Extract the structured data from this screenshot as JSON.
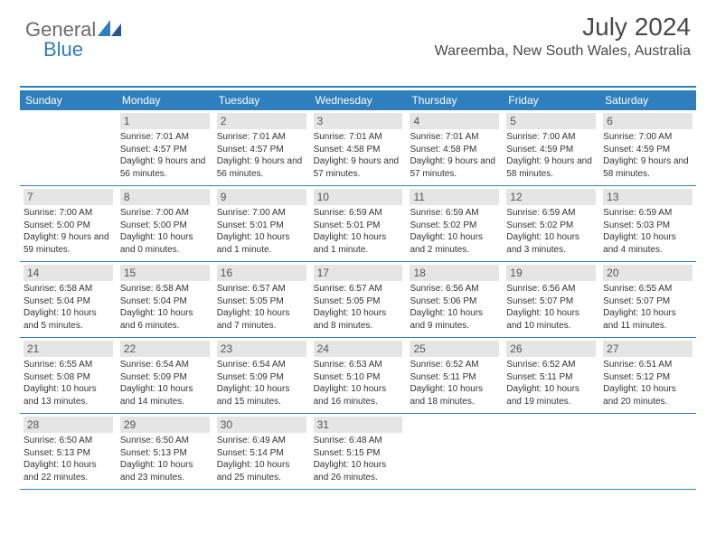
{
  "logo": {
    "word1": "General",
    "word2": "Blue"
  },
  "header": {
    "title": "July 2024",
    "location": "Wareemba, New South Wales, Australia"
  },
  "colors": {
    "accent": "#2f7fbf",
    "header_bg": "#2f7fbf",
    "daynum_bg": "#e5e5e5",
    "text": "#333333",
    "logo_gray": "#6b6b6b"
  },
  "calendar": {
    "day_names": [
      "Sunday",
      "Monday",
      "Tuesday",
      "Wednesday",
      "Thursday",
      "Friday",
      "Saturday"
    ],
    "first_weekday_index": 1,
    "days": [
      {
        "n": 1,
        "sunrise": "7:01 AM",
        "sunset": "4:57 PM",
        "daylight": "9 hours and 56 minutes."
      },
      {
        "n": 2,
        "sunrise": "7:01 AM",
        "sunset": "4:57 PM",
        "daylight": "9 hours and 56 minutes."
      },
      {
        "n": 3,
        "sunrise": "7:01 AM",
        "sunset": "4:58 PM",
        "daylight": "9 hours and 57 minutes."
      },
      {
        "n": 4,
        "sunrise": "7:01 AM",
        "sunset": "4:58 PM",
        "daylight": "9 hours and 57 minutes."
      },
      {
        "n": 5,
        "sunrise": "7:00 AM",
        "sunset": "4:59 PM",
        "daylight": "9 hours and 58 minutes."
      },
      {
        "n": 6,
        "sunrise": "7:00 AM",
        "sunset": "4:59 PM",
        "daylight": "9 hours and 58 minutes."
      },
      {
        "n": 7,
        "sunrise": "7:00 AM",
        "sunset": "5:00 PM",
        "daylight": "9 hours and 59 minutes."
      },
      {
        "n": 8,
        "sunrise": "7:00 AM",
        "sunset": "5:00 PM",
        "daylight": "10 hours and 0 minutes."
      },
      {
        "n": 9,
        "sunrise": "7:00 AM",
        "sunset": "5:01 PM",
        "daylight": "10 hours and 1 minute."
      },
      {
        "n": 10,
        "sunrise": "6:59 AM",
        "sunset": "5:01 PM",
        "daylight": "10 hours and 1 minute."
      },
      {
        "n": 11,
        "sunrise": "6:59 AM",
        "sunset": "5:02 PM",
        "daylight": "10 hours and 2 minutes."
      },
      {
        "n": 12,
        "sunrise": "6:59 AM",
        "sunset": "5:02 PM",
        "daylight": "10 hours and 3 minutes."
      },
      {
        "n": 13,
        "sunrise": "6:59 AM",
        "sunset": "5:03 PM",
        "daylight": "10 hours and 4 minutes."
      },
      {
        "n": 14,
        "sunrise": "6:58 AM",
        "sunset": "5:04 PM",
        "daylight": "10 hours and 5 minutes."
      },
      {
        "n": 15,
        "sunrise": "6:58 AM",
        "sunset": "5:04 PM",
        "daylight": "10 hours and 6 minutes."
      },
      {
        "n": 16,
        "sunrise": "6:57 AM",
        "sunset": "5:05 PM",
        "daylight": "10 hours and 7 minutes."
      },
      {
        "n": 17,
        "sunrise": "6:57 AM",
        "sunset": "5:05 PM",
        "daylight": "10 hours and 8 minutes."
      },
      {
        "n": 18,
        "sunrise": "6:56 AM",
        "sunset": "5:06 PM",
        "daylight": "10 hours and 9 minutes."
      },
      {
        "n": 19,
        "sunrise": "6:56 AM",
        "sunset": "5:07 PM",
        "daylight": "10 hours and 10 minutes."
      },
      {
        "n": 20,
        "sunrise": "6:55 AM",
        "sunset": "5:07 PM",
        "daylight": "10 hours and 11 minutes."
      },
      {
        "n": 21,
        "sunrise": "6:55 AM",
        "sunset": "5:08 PM",
        "daylight": "10 hours and 13 minutes."
      },
      {
        "n": 22,
        "sunrise": "6:54 AM",
        "sunset": "5:09 PM",
        "daylight": "10 hours and 14 minutes."
      },
      {
        "n": 23,
        "sunrise": "6:54 AM",
        "sunset": "5:09 PM",
        "daylight": "10 hours and 15 minutes."
      },
      {
        "n": 24,
        "sunrise": "6:53 AM",
        "sunset": "5:10 PM",
        "daylight": "10 hours and 16 minutes."
      },
      {
        "n": 25,
        "sunrise": "6:52 AM",
        "sunset": "5:11 PM",
        "daylight": "10 hours and 18 minutes."
      },
      {
        "n": 26,
        "sunrise": "6:52 AM",
        "sunset": "5:11 PM",
        "daylight": "10 hours and 19 minutes."
      },
      {
        "n": 27,
        "sunrise": "6:51 AM",
        "sunset": "5:12 PM",
        "daylight": "10 hours and 20 minutes."
      },
      {
        "n": 28,
        "sunrise": "6:50 AM",
        "sunset": "5:13 PM",
        "daylight": "10 hours and 22 minutes."
      },
      {
        "n": 29,
        "sunrise": "6:50 AM",
        "sunset": "5:13 PM",
        "daylight": "10 hours and 23 minutes."
      },
      {
        "n": 30,
        "sunrise": "6:49 AM",
        "sunset": "5:14 PM",
        "daylight": "10 hours and 25 minutes."
      },
      {
        "n": 31,
        "sunrise": "6:48 AM",
        "sunset": "5:15 PM",
        "daylight": "10 hours and 26 minutes."
      }
    ]
  }
}
